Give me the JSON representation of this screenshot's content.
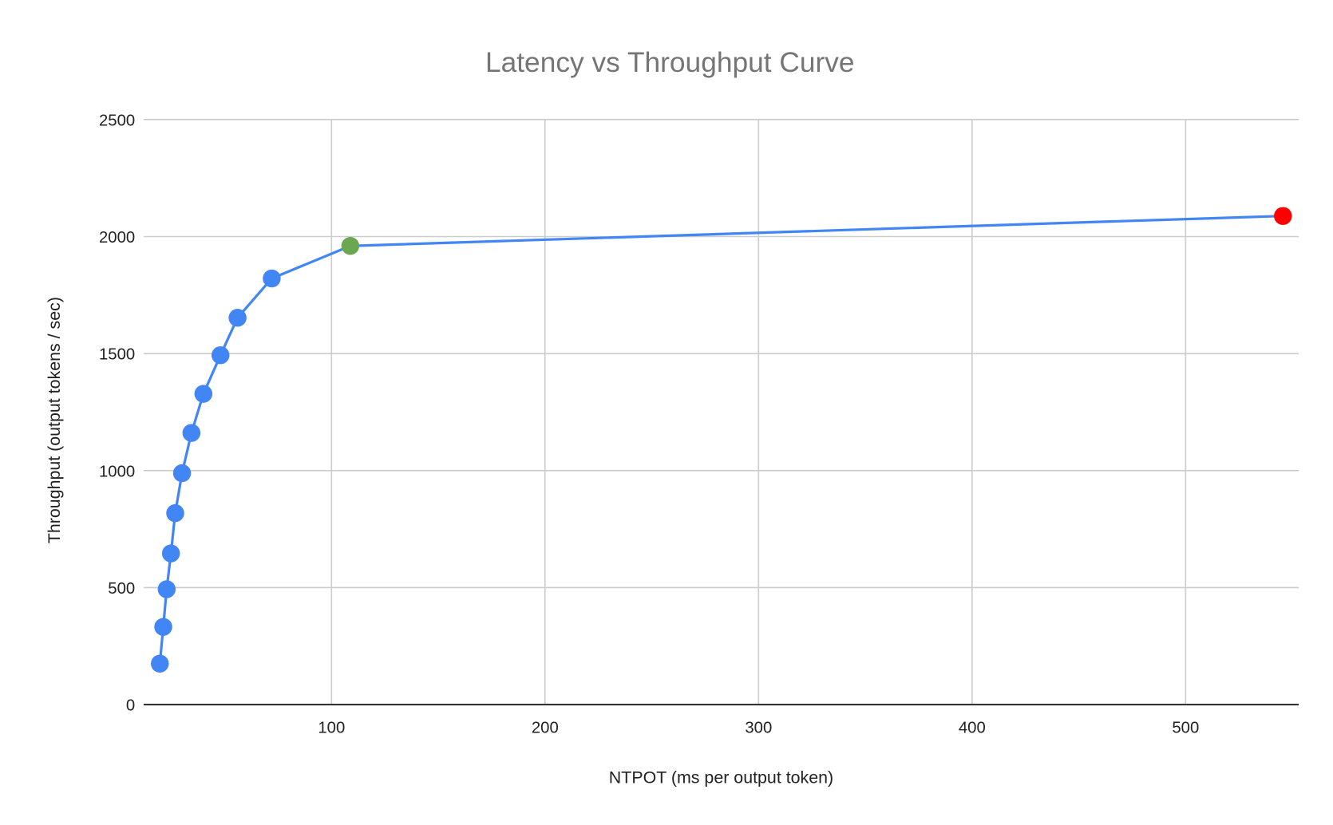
{
  "chart_data": {
    "type": "line",
    "title": "Latency vs Throughput Curve",
    "xlabel": "NTPOT (ms per output token)",
    "ylabel": "Throughput (output tokens / sec)",
    "xlim": [
      12,
      553
    ],
    "ylim": [
      0,
      2500
    ],
    "xticks": [
      100,
      200,
      300,
      400,
      500
    ],
    "yticks": [
      0,
      500,
      1000,
      1500,
      2000,
      2500
    ],
    "grid": true,
    "line_color": "#4285f4",
    "series": [
      {
        "points": [
          {
            "x": 19.6,
            "y": 175,
            "color": "#4285f4"
          },
          {
            "x": 21.2,
            "y": 332,
            "color": "#4285f4"
          },
          {
            "x": 22.8,
            "y": 493,
            "color": "#4285f4"
          },
          {
            "x": 24.8,
            "y": 646,
            "color": "#4285f4"
          },
          {
            "x": 26.8,
            "y": 818,
            "color": "#4285f4"
          },
          {
            "x": 30,
            "y": 989,
            "color": "#4285f4"
          },
          {
            "x": 34.4,
            "y": 1161,
            "color": "#4285f4"
          },
          {
            "x": 40,
            "y": 1328,
            "color": "#4285f4"
          },
          {
            "x": 48,
            "y": 1493,
            "color": "#4285f4"
          },
          {
            "x": 56,
            "y": 1653,
            "color": "#4285f4"
          },
          {
            "x": 72,
            "y": 1821,
            "color": "#4285f4"
          },
          {
            "x": 108.8,
            "y": 1960,
            "color": "#6aa84f"
          },
          {
            "x": 545.6,
            "y": 2088,
            "color": "#ff0000"
          }
        ]
      }
    ]
  }
}
